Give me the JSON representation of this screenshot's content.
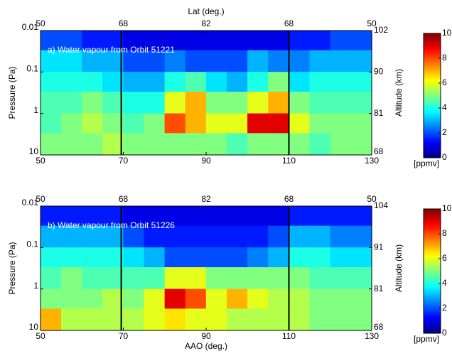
{
  "chart_data": [
    {
      "type": "heatmap",
      "title": "a) Water vapour from Orbit 51221",
      "ylabel": "Pressure (Pa)",
      "y2label": "Altitude (km)",
      "toplabel": "Lat (deg.)",
      "xlim": [
        50,
        130
      ],
      "xticks": [
        50,
        70,
        90,
        110,
        130
      ],
      "ylim": [
        0.01,
        10
      ],
      "yticks": [
        0.01,
        0.1,
        1,
        10
      ],
      "log_y": true,
      "y2ticks": [
        102,
        90,
        81,
        68
      ],
      "y2tick_pressures": [
        0.01,
        0.1,
        1,
        10
      ],
      "lat_ticks": [
        50,
        68,
        82,
        68,
        50
      ],
      "lat_tick_positions": [
        50,
        70,
        90,
        110,
        130
      ],
      "vlines": [
        69.5,
        110
      ],
      "x_edges": [
        50,
        55,
        60,
        65,
        70,
        75,
        80,
        85,
        90,
        95,
        100,
        105,
        110,
        115,
        120,
        125,
        130
      ],
      "y_edges": [
        0.01,
        0.03,
        0.1,
        0.3,
        1,
        3,
        10
      ],
      "z": [
        [
          2,
          2,
          1.5,
          1.5,
          1,
          1,
          1,
          1,
          1,
          1,
          1,
          1,
          1.5,
          1.5,
          2,
          2
        ],
        [
          3.5,
          3.5,
          3,
          3,
          2,
          2,
          2.5,
          2,
          2,
          2,
          3,
          2.5,
          2.5,
          3,
          3,
          3
        ],
        [
          4,
          4,
          4,
          3.5,
          3,
          3,
          4,
          4.5,
          3.5,
          3,
          4,
          5,
          3.5,
          4,
          4,
          4
        ],
        [
          4.5,
          4.5,
          5,
          4.5,
          4,
          4,
          6,
          7,
          5,
          5,
          6,
          7,
          5,
          4.5,
          4.5,
          4.5
        ],
        [
          4.5,
          5,
          5.5,
          5,
          4.5,
          5,
          8,
          7,
          6,
          6,
          9,
          9,
          6,
          5,
          5,
          5
        ],
        [
          5,
          5,
          5,
          5.5,
          5,
          5,
          5,
          5,
          5,
          4.5,
          5,
          5,
          5,
          4.5,
          5,
          5
        ]
      ],
      "clim": [
        0,
        10
      ],
      "cticks": [
        0,
        2,
        4,
        6,
        8,
        10
      ],
      "clabel": "[ppmv]",
      "colormap": "jet"
    },
    {
      "type": "heatmap",
      "title": "b) Water vapour from Orbit 51226",
      "ylabel": "Pressure (Pa)",
      "y2label": "Altitude (km)",
      "xlabel": "AAO (deg.)",
      "xlim": [
        50,
        130
      ],
      "xticks": [
        50,
        70,
        90,
        110,
        130
      ],
      "ylim": [
        0.01,
        10
      ],
      "yticks": [
        0.01,
        0.1,
        1,
        10
      ],
      "log_y": true,
      "y2ticks": [
        104,
        91,
        81,
        68
      ],
      "y2tick_pressures": [
        0.01,
        0.1,
        1,
        10
      ],
      "lat_ticks": [
        50,
        68,
        82,
        68,
        50
      ],
      "lat_tick_positions": [
        50,
        70,
        90,
        110,
        130
      ],
      "vlines": [
        69.5,
        110
      ],
      "x_edges": [
        50,
        55,
        60,
        65,
        70,
        75,
        80,
        85,
        90,
        95,
        100,
        105,
        110,
        115,
        120,
        125,
        130
      ],
      "y_edges": [
        0.01,
        0.03,
        0.1,
        0.3,
        1,
        3,
        10
      ],
      "z": [
        [
          1.5,
          1.5,
          1.5,
          1.5,
          1,
          1,
          1,
          1,
          1,
          1,
          1,
          1,
          1.5,
          1.5,
          1.5,
          1.5
        ],
        [
          3,
          3,
          3,
          3,
          2,
          1.5,
          1.5,
          1.5,
          1.5,
          1.5,
          1.5,
          2,
          3,
          3,
          2.5,
          2.5
        ],
        [
          4,
          4,
          4,
          4,
          3.5,
          3,
          2,
          2,
          2,
          2,
          2.5,
          3,
          4,
          4,
          3.5,
          3.5
        ],
        [
          4.5,
          5,
          4.5,
          4.5,
          4.5,
          4.5,
          6,
          6,
          5,
          5,
          5,
          5,
          5,
          4.5,
          4.5,
          4.5
        ],
        [
          5,
          5,
          5,
          5.5,
          5,
          6,
          9,
          8,
          6,
          7,
          6,
          5.5,
          5.5,
          5,
          5,
          5
        ],
        [
          7,
          5.5,
          5.5,
          5.5,
          5.5,
          6,
          6.5,
          6,
          6,
          5.5,
          5.5,
          5.5,
          5.5,
          5,
          5,
          5
        ]
      ],
      "clim": [
        0,
        10
      ],
      "cticks": [
        0,
        2,
        4,
        6,
        8,
        10
      ],
      "clabel": "[ppmv]",
      "colormap": "jet"
    }
  ]
}
